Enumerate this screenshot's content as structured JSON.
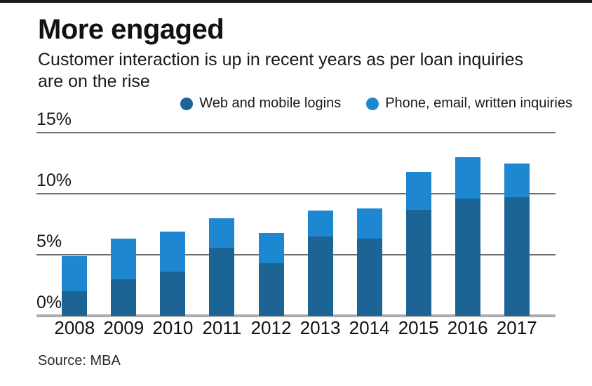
{
  "header": {
    "title": "More engaged",
    "subtitle": "Customer interaction is up in recent years as per loan inquiries\nare on the rise"
  },
  "legend": {
    "items": [
      {
        "label": "Web and mobile logins",
        "color": "#1d6496"
      },
      {
        "label": "Phone, email, written inquiries",
        "color": "#1e87d2"
      }
    ]
  },
  "chart_data": {
    "type": "bar",
    "stacked": true,
    "title": "More engaged",
    "subtitle": "Customer interaction is up in recent years as per loan inquiries are on the rise",
    "categories": [
      "2008",
      "2009",
      "2010",
      "2011",
      "2012",
      "2013",
      "2014",
      "2015",
      "2016",
      "2017"
    ],
    "series": [
      {
        "name": "Web and mobile logins",
        "color": "#1d6496",
        "values": [
          2.0,
          3.0,
          3.6,
          5.6,
          4.3,
          6.5,
          6.3,
          8.7,
          9.6,
          9.7
        ]
      },
      {
        "name": "Phone, email, written inquiries",
        "color": "#1e87d2",
        "values": [
          2.9,
          3.3,
          3.3,
          2.4,
          2.5,
          2.1,
          2.5,
          3.1,
          3.4,
          2.8
        ]
      }
    ],
    "totals": [
      4.9,
      6.3,
      6.9,
      8.0,
      6.8,
      8.6,
      8.8,
      11.8,
      13.0,
      12.5
    ],
    "xlabel": "",
    "ylabel": "",
    "ylim": [
      0,
      15
    ],
    "yticks": [
      {
        "value": 0,
        "label": "0%"
      },
      {
        "value": 5,
        "label": "5%"
      },
      {
        "value": 10,
        "label": "10%"
      },
      {
        "value": 15,
        "label": "15%"
      }
    ],
    "grid": true,
    "legend_position": "top-right"
  },
  "footer": {
    "source": "Source: MBA"
  },
  "colors": {
    "series_dark": "#1d6496",
    "series_light": "#1e87d2",
    "gridline": "#6d6e71",
    "baseline": "#aaacae",
    "top_rule": "#1a1a1a",
    "text": "#1a1a1a"
  }
}
